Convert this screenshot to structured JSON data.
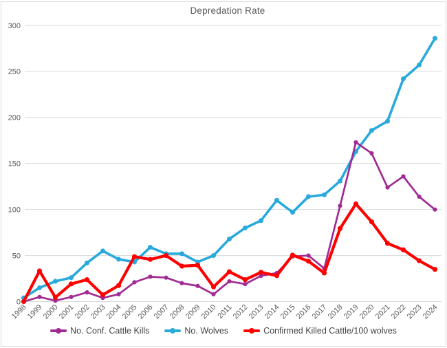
{
  "chart_data": {
    "type": "line",
    "title": "Depredation Rate",
    "x": [
      "1998",
      "1999",
      "2000",
      "2001",
      "2002",
      "2003",
      "2004",
      "2005",
      "2006",
      "2007",
      "2008",
      "2009",
      "2010",
      "2011",
      "2012",
      "2013",
      "2014",
      "2015",
      "2016",
      "2017",
      "2018",
      "2019",
      "2020",
      "2021",
      "2022",
      "2023",
      "2024"
    ],
    "xlabel": "",
    "ylabel": "",
    "ylim": [
      0,
      300
    ],
    "yticks": [
      0,
      50,
      100,
      150,
      200,
      250,
      300
    ],
    "grid": "horizontal",
    "legend_position": "bottom",
    "background_color": "#ffffff",
    "gridline_color": "#d9d9d9",
    "axis_text_color": "#595959",
    "series": [
      {
        "name": "No. Conf. Cattle Kills",
        "color": "#a02b93",
        "values": [
          0,
          5,
          1,
          5,
          10,
          4,
          8,
          21,
          27,
          26,
          20,
          17,
          8,
          22,
          19,
          28,
          31,
          49,
          50,
          36,
          104,
          173,
          161,
          124,
          136,
          114,
          100
        ]
      },
      {
        "name": "No. Wolves",
        "color": "#29a9dc",
        "values": [
          4,
          15,
          22,
          26,
          42,
          55,
          46,
          43,
          59,
          52,
          52,
          43,
          50,
          68,
          80,
          88,
          110,
          97,
          114,
          116,
          131,
          163,
          186,
          196,
          242,
          257,
          286
        ]
      },
      {
        "name": "Confirmed Killed Cattle/100 wolves",
        "color": "#ff0000",
        "values": [
          0,
          33.3,
          4.5,
          19.2,
          23.8,
          7.3,
          17.4,
          48.8,
          45.8,
          50,
          38.5,
          39.5,
          16,
          32.4,
          23.8,
          31.8,
          28.2,
          50.5,
          43.9,
          31,
          79.4,
          106.1,
          86.6,
          63.3,
          56.2,
          44.4,
          35
        ]
      }
    ]
  }
}
